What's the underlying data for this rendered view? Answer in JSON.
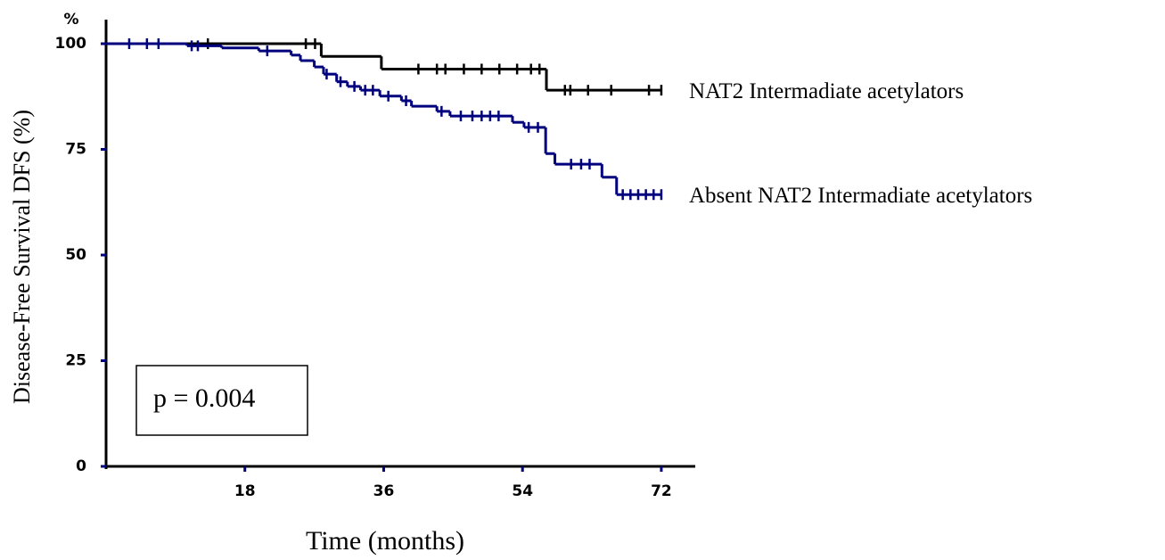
{
  "chart_data": {
    "type": "step",
    "y_label": "Disease-Free Survival DFS (%)",
    "y_unit": "%",
    "x_label": "Time (months)",
    "annotation": "p = 0.004",
    "xlim": [
      0,
      76.4
    ],
    "ylim": [
      0,
      105.7
    ],
    "xticks": [
      18,
      36,
      54,
      72
    ],
    "yticks": [
      0,
      25,
      50,
      75,
      100
    ],
    "series": [
      {
        "name": "NAT2 Intermadiate acetylators",
        "color": "#000000",
        "x": [
          0,
          27.9,
          35.7,
          57.1,
          72
        ],
        "y": [
          100,
          97,
          94,
          89,
          89
        ],
        "censored_x": [
          13.2,
          25.9,
          27.1,
          40.5,
          42.9,
          44.0,
          46.4,
          48.7,
          51.0,
          53.3,
          55.1,
          56.2,
          59.5,
          60.2,
          62.5,
          65.5,
          70.4,
          72
        ],
        "censored_y": [
          100,
          100,
          100,
          94,
          94,
          94,
          94,
          94,
          94,
          94,
          94,
          94,
          89,
          89,
          89,
          89,
          89,
          89
        ]
      },
      {
        "name": "Absent NAT2 Intermadiate acetylators",
        "color": "#00007f",
        "x": [
          0,
          10.5,
          15,
          19.8,
          24,
          25.2,
          27,
          28.2,
          29.9,
          31.3,
          33,
          35.5,
          38.3,
          39.6,
          42.9,
          44.6,
          52.7,
          54.2,
          57,
          58.2,
          64.3,
          66.2,
          72
        ],
        "y": [
          100,
          99.5,
          99,
          98.3,
          97.3,
          96,
          94.5,
          92.8,
          91,
          89.9,
          89,
          87.6,
          86.5,
          85.2,
          84,
          82.9,
          81.4,
          80.2,
          74,
          71.5,
          68.4,
          64.3,
          64.3
        ],
        "censored_x": [
          3.0,
          5.3,
          6.8,
          11.1,
          11.9,
          20.9,
          28.6,
          30.4,
          32.2,
          33.6,
          34.6,
          36.6,
          38.9,
          43.5,
          46.0,
          47.5,
          48.7,
          49.8,
          50.9,
          54.8,
          56.0,
          60.3,
          61.6,
          62.7,
          67.0,
          68.0,
          69.0,
          70.0,
          71.0,
          72.0
        ],
        "censored_y": [
          100,
          100,
          100,
          99.5,
          99.5,
          98.3,
          92.8,
          91,
          89.9,
          89,
          89,
          87.6,
          86.5,
          84,
          82.9,
          82.9,
          82.9,
          82.9,
          82.9,
          80.2,
          80.2,
          71.5,
          71.5,
          71.5,
          64.3,
          64.3,
          64.3,
          64.3,
          64.3,
          64.3
        ]
      }
    ]
  }
}
